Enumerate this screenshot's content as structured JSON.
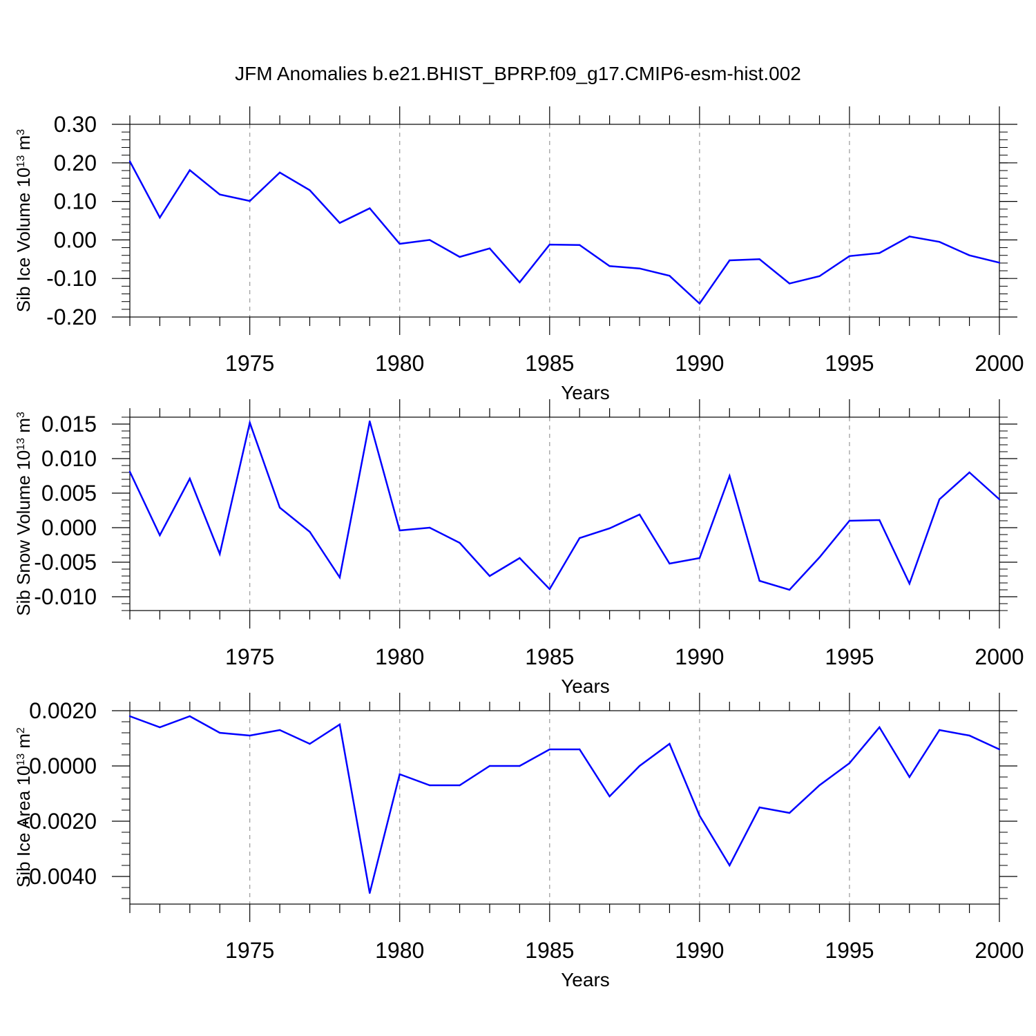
{
  "title": "JFM Anomalies b.e21.BHIST_BPRP.f09_g17.CMIP6-esm-hist.002",
  "line_color": "#0000ff",
  "chart_data": [
    {
      "type": "line",
      "ylabel": "Sib Ice Volume 10",
      "ylabel_sup": "13",
      "ylabel_unit": " m",
      "ylabel_unit_sup": "3",
      "xlabel": "Years",
      "xlim": [
        1971,
        2000
      ],
      "ylim": [
        -0.2,
        0.3
      ],
      "yticks": [
        -0.2,
        -0.1,
        0.0,
        0.1,
        0.2,
        0.3
      ],
      "ytick_labels": [
        "-0.20",
        "-0.10",
        "0.00",
        "0.10",
        "0.20",
        "0.30"
      ],
      "yminor_step": 0.02,
      "xticks": [
        1975,
        1980,
        1985,
        1990,
        1995,
        2000
      ],
      "xtick_labels": [
        "1975",
        "1980",
        "1985",
        "1990",
        "1995",
        "2000"
      ],
      "x": [
        1971,
        1972,
        1973,
        1974,
        1975,
        1976,
        1977,
        1978,
        1979,
        1980,
        1981,
        1982,
        1983,
        1984,
        1985,
        1986,
        1987,
        1988,
        1989,
        1990,
        1991,
        1992,
        1993,
        1994,
        1995,
        1996,
        1997,
        1998,
        1999,
        2000
      ],
      "values": [
        0.204,
        0.058,
        0.181,
        0.118,
        0.101,
        0.175,
        0.129,
        0.044,
        0.082,
        -0.01,
        0.0,
        -0.044,
        -0.022,
        -0.11,
        -0.012,
        -0.013,
        -0.068,
        -0.074,
        -0.093,
        -0.165,
        -0.053,
        -0.05,
        -0.113,
        -0.094,
        -0.042,
        -0.034,
        0.009,
        -0.005,
        -0.04,
        -0.059
      ]
    },
    {
      "type": "line",
      "ylabel": "Sib Snow Volume 10",
      "ylabel_sup": "13",
      "ylabel_unit": " m",
      "ylabel_unit_sup": "3",
      "xlabel": "Years",
      "xlim": [
        1971,
        2000
      ],
      "ylim": [
        -0.012,
        0.016
      ],
      "yticks": [
        -0.01,
        -0.005,
        0.0,
        0.005,
        0.01,
        0.015
      ],
      "ytick_labels": [
        "-0.010",
        "-0.005",
        "0.000",
        "0.005",
        "0.010",
        "0.015"
      ],
      "yminor_step": 0.001,
      "xticks": [
        1975,
        1980,
        1985,
        1990,
        1995,
        2000
      ],
      "xtick_labels": [
        "1975",
        "1980",
        "1985",
        "1990",
        "1995",
        "2000"
      ],
      "x": [
        1971,
        1972,
        1973,
        1974,
        1975,
        1976,
        1977,
        1978,
        1979,
        1980,
        1981,
        1982,
        1983,
        1984,
        1985,
        1986,
        1987,
        1988,
        1989,
        1990,
        1991,
        1992,
        1993,
        1994,
        1995,
        1996,
        1997,
        1998,
        1999,
        2000
      ],
      "values": [
        0.0081,
        -0.0011,
        0.0071,
        -0.0038,
        0.0152,
        0.0029,
        -0.0006,
        -0.0072,
        0.0154,
        -0.0004,
        0.0,
        -0.0022,
        -0.007,
        -0.0044,
        -0.0089,
        -0.0015,
        -0.0001,
        0.0019,
        -0.0052,
        -0.0044,
        0.0075,
        -0.0077,
        -0.009,
        -0.0043,
        0.001,
        0.0011,
        -0.0081,
        0.0041,
        0.008,
        0.0041
      ]
    },
    {
      "type": "line",
      "ylabel": "Sib Ice Area 10",
      "ylabel_sup": "13",
      "ylabel_unit": " m",
      "ylabel_unit_sup": "2",
      "xlabel": "Years",
      "xlim": [
        1971,
        2000
      ],
      "ylim": [
        -0.005,
        0.002
      ],
      "yticks": [
        -0.004,
        -0.002,
        0.0,
        0.002
      ],
      "ytick_labels": [
        "-0.0040",
        "-0.0020",
        "0.0000",
        "0.0020"
      ],
      "yminor_step": 0.0004,
      "xticks": [
        1975,
        1980,
        1985,
        1990,
        1995,
        2000
      ],
      "xtick_labels": [
        "1975",
        "1980",
        "1985",
        "1990",
        "1995",
        "2000"
      ],
      "x": [
        1971,
        1972,
        1973,
        1974,
        1975,
        1976,
        1977,
        1978,
        1979,
        1980,
        1981,
        1982,
        1983,
        1984,
        1985,
        1986,
        1987,
        1988,
        1989,
        1990,
        1991,
        1992,
        1993,
        1994,
        1995,
        1996,
        1997,
        1998,
        1999,
        2000
      ],
      "values": [
        0.0018,
        0.0014,
        0.0018,
        0.0012,
        0.0011,
        0.0013,
        0.0008,
        0.0015,
        -0.0046,
        -0.0003,
        -0.0007,
        -0.0007,
        0.0,
        0.0,
        0.0006,
        0.0006,
        -0.0011,
        0.0,
        0.0008,
        -0.0018,
        -0.0036,
        -0.0015,
        -0.0017,
        -0.0007,
        0.0001,
        0.0014,
        -0.0004,
        0.0013,
        0.0011,
        0.0006
      ]
    }
  ]
}
